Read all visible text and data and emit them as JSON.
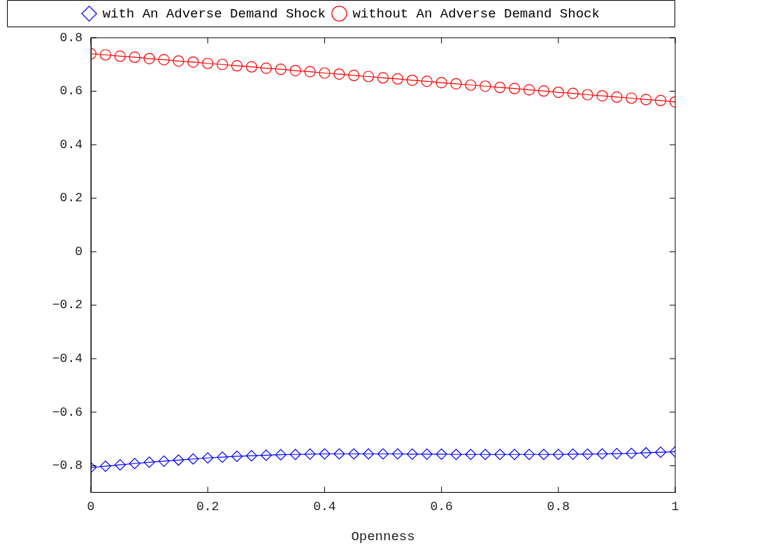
{
  "chart_data": {
    "type": "line",
    "xlabel": "Openness",
    "x": [
      0,
      0.025,
      0.05,
      0.075,
      0.1,
      0.125,
      0.15,
      0.175,
      0.2,
      0.225,
      0.25,
      0.275,
      0.3,
      0.325,
      0.35,
      0.375,
      0.4,
      0.425,
      0.45,
      0.475,
      0.5,
      0.525,
      0.55,
      0.575,
      0.6,
      0.625,
      0.65,
      0.675,
      0.7,
      0.725,
      0.75,
      0.775,
      0.8,
      0.825,
      0.85,
      0.875,
      0.9,
      0.925,
      0.95,
      0.975,
      1
    ],
    "series": [
      {
        "name": "with An Adverse Demand Shock",
        "color": "#0000ff",
        "marker": "diamond",
        "values": [
          -0.807,
          -0.802,
          -0.797,
          -0.792,
          -0.787,
          -0.783,
          -0.779,
          -0.775,
          -0.771,
          -0.768,
          -0.765,
          -0.763,
          -0.761,
          -0.759,
          -0.758,
          -0.757,
          -0.756,
          -0.756,
          -0.756,
          -0.756,
          -0.756,
          -0.756,
          -0.757,
          -0.757,
          -0.757,
          -0.758,
          -0.758,
          -0.758,
          -0.758,
          -0.758,
          -0.758,
          -0.758,
          -0.758,
          -0.757,
          -0.757,
          -0.756,
          -0.755,
          -0.754,
          -0.752,
          -0.75,
          -0.748
        ]
      },
      {
        "name": "without An Adverse Demand Shock",
        "color": "#ff0000",
        "marker": "circle",
        "values": [
          0.74,
          0.736,
          0.731,
          0.727,
          0.722,
          0.718,
          0.713,
          0.709,
          0.704,
          0.7,
          0.695,
          0.691,
          0.686,
          0.682,
          0.677,
          0.673,
          0.668,
          0.664,
          0.659,
          0.655,
          0.65,
          0.646,
          0.641,
          0.637,
          0.632,
          0.628,
          0.623,
          0.619,
          0.614,
          0.61,
          0.605,
          0.601,
          0.596,
          0.592,
          0.587,
          0.583,
          0.578,
          0.574,
          0.569,
          0.565,
          0.56
        ]
      }
    ],
    "xlim": [
      0,
      1
    ],
    "xticks": [
      0,
      0.2,
      0.4,
      0.6,
      0.8,
      1
    ],
    "ylim": [
      -0.9,
      0.8
    ],
    "yticks": [
      {
        "value": -0.8,
        "label": "−0.8"
      },
      {
        "value": -0.6,
        "label": "−0.6"
      },
      {
        "value": -0.4,
        "label": "−0.4"
      },
      {
        "value": -0.2,
        "label": "−0.2"
      },
      0,
      0.2,
      0.4,
      0.6,
      0.8
    ],
    "grid": false,
    "legend": "top",
    "line_style": "solid"
  }
}
